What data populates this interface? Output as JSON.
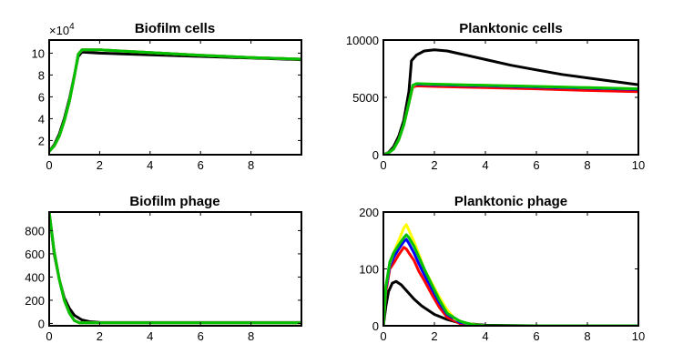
{
  "chart_data": [
    {
      "type": "line",
      "title": "Biofilm cells",
      "xlim": [
        0,
        10
      ],
      "ylim": [
        0.7,
        11.2
      ],
      "xticks": [
        "0",
        "2",
        "4",
        "6",
        "8"
      ],
      "xtick_values": [
        0,
        2,
        4,
        6,
        8
      ],
      "yticks": [
        "2",
        "4",
        "6",
        "8",
        "10"
      ],
      "ytick_values": [
        2,
        4,
        6,
        8,
        10
      ],
      "exponent_label": "×10",
      "exponent_power": "4",
      "series": [
        {
          "name": "black",
          "color": "#000000",
          "x": [
            0,
            0.2,
            0.4,
            0.6,
            0.8,
            1.0,
            1.15,
            1.3,
            2,
            4,
            6,
            8,
            10
          ],
          "y": [
            1.0,
            1.6,
            2.6,
            4.0,
            5.8,
            8.0,
            9.7,
            10.1,
            10.0,
            9.85,
            9.7,
            9.55,
            9.4
          ]
        },
        {
          "name": "red",
          "color": "#ff0000",
          "x": [
            0,
            0.2,
            0.4,
            0.6,
            0.8,
            1.0,
            1.15,
            1.3,
            2,
            4,
            6,
            8,
            10
          ],
          "y": [
            1.0,
            1.5,
            2.4,
            3.8,
            5.6,
            7.9,
            9.9,
            10.3,
            10.3,
            10.05,
            9.8,
            9.6,
            9.45
          ]
        },
        {
          "name": "blue",
          "color": "#0000ff",
          "x": [
            0,
            0.2,
            0.4,
            0.6,
            0.8,
            1.0,
            1.15,
            1.3,
            2,
            4,
            6,
            8,
            10
          ],
          "y": [
            1.0,
            1.5,
            2.4,
            3.8,
            5.6,
            7.9,
            9.9,
            10.3,
            10.3,
            10.05,
            9.8,
            9.6,
            9.45
          ]
        },
        {
          "name": "yellow",
          "color": "#ffff00",
          "x": [
            0,
            0.2,
            0.4,
            0.6,
            0.8,
            1.0,
            1.15,
            1.3,
            2,
            4,
            6,
            8,
            10
          ],
          "y": [
            1.0,
            1.5,
            2.4,
            3.8,
            5.6,
            7.9,
            9.9,
            10.3,
            10.3,
            10.05,
            9.8,
            9.6,
            9.45
          ]
        },
        {
          "name": "green",
          "color": "#00c000",
          "x": [
            0,
            0.2,
            0.4,
            0.6,
            0.8,
            1.0,
            1.15,
            1.3,
            2,
            4,
            6,
            8,
            10
          ],
          "y": [
            1.0,
            1.5,
            2.4,
            3.8,
            5.6,
            7.9,
            9.9,
            10.3,
            10.3,
            10.05,
            9.8,
            9.6,
            9.45
          ]
        }
      ]
    },
    {
      "type": "line",
      "title": "Planktonic cells",
      "xlim": [
        0,
        10
      ],
      "ylim": [
        0,
        10000
      ],
      "xticks": [
        "0",
        "2",
        "4",
        "6",
        "8",
        "10"
      ],
      "xtick_values": [
        0,
        2,
        4,
        6,
        8,
        10
      ],
      "yticks": [
        "0",
        "5000",
        "10000"
      ],
      "ytick_values": [
        0,
        5000,
        10000
      ],
      "series": [
        {
          "name": "black",
          "color": "#000000",
          "x": [
            0,
            0.2,
            0.4,
            0.6,
            0.8,
            1.0,
            1.1,
            1.3,
            1.6,
            2.0,
            2.5,
            3,
            4,
            5,
            6,
            7,
            8,
            9,
            10
          ],
          "y": [
            0,
            200,
            700,
            1600,
            3000,
            5500,
            8200,
            8700,
            9050,
            9150,
            9050,
            8800,
            8300,
            7800,
            7400,
            7000,
            6700,
            6400,
            6100
          ]
        },
        {
          "name": "red",
          "color": "#ff0000",
          "x": [
            0,
            0.2,
            0.4,
            0.6,
            0.8,
            1.0,
            1.15,
            1.3,
            2,
            4,
            6,
            8,
            10
          ],
          "y": [
            0,
            150,
            500,
            1300,
            2600,
            4500,
            5900,
            6000,
            5950,
            5850,
            5750,
            5600,
            5500
          ]
        },
        {
          "name": "blue",
          "color": "#0000ff",
          "x": [
            0,
            0.2,
            0.4,
            0.6,
            0.8,
            1.0,
            1.15,
            1.3,
            2,
            4,
            6,
            8,
            10
          ],
          "y": [
            0,
            150,
            500,
            1300,
            2600,
            4500,
            6000,
            6150,
            6100,
            6000,
            5900,
            5800,
            5700
          ]
        },
        {
          "name": "yellow",
          "color": "#ffff00",
          "x": [
            0,
            0.2,
            0.4,
            0.6,
            0.8,
            1.0,
            1.15,
            1.3,
            2,
            4,
            6,
            8,
            10
          ],
          "y": [
            0,
            150,
            500,
            1300,
            2600,
            4500,
            6000,
            6200,
            6150,
            6050,
            5950,
            5850,
            5750
          ]
        },
        {
          "name": "green",
          "color": "#00c000",
          "x": [
            0,
            0.2,
            0.4,
            0.6,
            0.8,
            1.0,
            1.15,
            1.3,
            2,
            4,
            6,
            8,
            10
          ],
          "y": [
            0,
            150,
            500,
            1300,
            2600,
            4500,
            6050,
            6200,
            6150,
            6050,
            5950,
            5850,
            5750
          ]
        }
      ]
    },
    {
      "type": "line",
      "title": "Biofilm phage",
      "xlim": [
        0,
        10
      ],
      "ylim": [
        -20,
        960
      ],
      "xticks": [
        "0",
        "2",
        "4",
        "6",
        "8"
      ],
      "xtick_values": [
        0,
        2,
        4,
        6,
        8
      ],
      "yticks": [
        "0",
        "200",
        "400",
        "600",
        "800"
      ],
      "ytick_values": [
        0,
        200,
        400,
        600,
        800
      ],
      "series": [
        {
          "name": "black",
          "color": "#000000",
          "x": [
            0,
            0.2,
            0.4,
            0.6,
            0.8,
            1.0,
            1.3,
            1.6,
            2.0,
            3,
            4,
            6,
            8,
            10
          ],
          "y": [
            960,
            600,
            380,
            220,
            130,
            70,
            30,
            15,
            10,
            8,
            8,
            8,
            8,
            8
          ]
        },
        {
          "name": "red",
          "color": "#ff0000",
          "x": [
            0,
            0.2,
            0.4,
            0.6,
            0.8,
            1.0,
            1.2,
            2,
            4,
            6,
            8,
            10
          ],
          "y": [
            960,
            620,
            380,
            200,
            90,
            25,
            5,
            5,
            5,
            5,
            5,
            5
          ]
        },
        {
          "name": "blue",
          "color": "#0000ff",
          "x": [
            0,
            0.2,
            0.4,
            0.6,
            0.8,
            1.0,
            1.2,
            2,
            4,
            6,
            8,
            10
          ],
          "y": [
            960,
            620,
            380,
            200,
            90,
            25,
            5,
            5,
            5,
            5,
            5,
            5
          ]
        },
        {
          "name": "yellow",
          "color": "#ffff00",
          "x": [
            0,
            0.2,
            0.4,
            0.6,
            0.8,
            1.0,
            1.2,
            2,
            4,
            6,
            8,
            10
          ],
          "y": [
            960,
            620,
            380,
            200,
            90,
            25,
            5,
            5,
            5,
            5,
            5,
            5
          ]
        },
        {
          "name": "green",
          "color": "#00c000",
          "x": [
            0,
            0.2,
            0.4,
            0.6,
            0.8,
            1.0,
            1.2,
            2,
            4,
            6,
            8,
            10
          ],
          "y": [
            960,
            620,
            380,
            200,
            90,
            25,
            5,
            5,
            5,
            5,
            5,
            5
          ]
        }
      ]
    },
    {
      "type": "line",
      "title": "Planktonic phage",
      "xlim": [
        0,
        10
      ],
      "ylim": [
        0,
        200
      ],
      "xticks": [
        "0",
        "2",
        "4",
        "6",
        "8",
        "10"
      ],
      "xtick_values": [
        0,
        2,
        4,
        6,
        8,
        10
      ],
      "yticks": [
        "0",
        "100",
        "200"
      ],
      "ytick_values": [
        0,
        100,
        200
      ],
      "series": [
        {
          "name": "black",
          "color": "#000000",
          "x": [
            0,
            0.1,
            0.2,
            0.35,
            0.5,
            0.7,
            0.9,
            1.2,
            1.5,
            2,
            2.5,
            3,
            4,
            6,
            8,
            10
          ],
          "y": [
            0,
            35,
            60,
            75,
            78,
            72,
            62,
            47,
            35,
            20,
            11,
            5,
            1,
            0,
            0,
            0
          ]
        },
        {
          "name": "red",
          "color": "#ff0000",
          "x": [
            0,
            0.1,
            0.25,
            0.4,
            0.6,
            0.8,
            0.9,
            1.0,
            1.2,
            1.4,
            1.6,
            1.9,
            2.2,
            2.5,
            3,
            3.5,
            4,
            6,
            8,
            10
          ],
          "y": [
            0,
            60,
            100,
            110,
            125,
            138,
            135,
            128,
            115,
            95,
            80,
            55,
            32,
            15,
            4,
            1,
            0,
            0,
            0,
            0
          ]
        },
        {
          "name": "blue",
          "color": "#0000ff",
          "x": [
            0,
            0.1,
            0.25,
            0.4,
            0.6,
            0.8,
            0.9,
            1.0,
            1.2,
            1.4,
            1.6,
            1.9,
            2.2,
            2.5,
            3,
            3.5,
            4,
            6,
            8,
            10
          ],
          "y": [
            0,
            65,
            105,
            120,
            135,
            148,
            152,
            145,
            128,
            108,
            90,
            65,
            40,
            20,
            6,
            2,
            0,
            0,
            0,
            0
          ]
        },
        {
          "name": "yellow",
          "color": "#ffff00",
          "x": [
            0,
            0.1,
            0.25,
            0.4,
            0.6,
            0.8,
            0.9,
            1.0,
            1.2,
            1.4,
            1.6,
            1.9,
            2.2,
            2.5,
            2.8,
            3.2,
            3.6,
            4,
            6,
            8,
            10
          ],
          "y": [
            0,
            70,
            110,
            128,
            150,
            172,
            178,
            168,
            148,
            125,
            100,
            75,
            50,
            28,
            12,
            5,
            2,
            0,
            0,
            0,
            0
          ]
        },
        {
          "name": "green",
          "color": "#00c000",
          "x": [
            0,
            0.1,
            0.25,
            0.4,
            0.6,
            0.8,
            0.9,
            1.0,
            1.2,
            1.4,
            1.6,
            1.9,
            2.2,
            2.5,
            3,
            3.5,
            4,
            6,
            8,
            10
          ],
          "y": [
            0,
            70,
            112,
            128,
            142,
            155,
            160,
            155,
            140,
            120,
            100,
            72,
            45,
            22,
            8,
            2,
            0,
            0,
            0,
            0
          ]
        }
      ]
    }
  ]
}
